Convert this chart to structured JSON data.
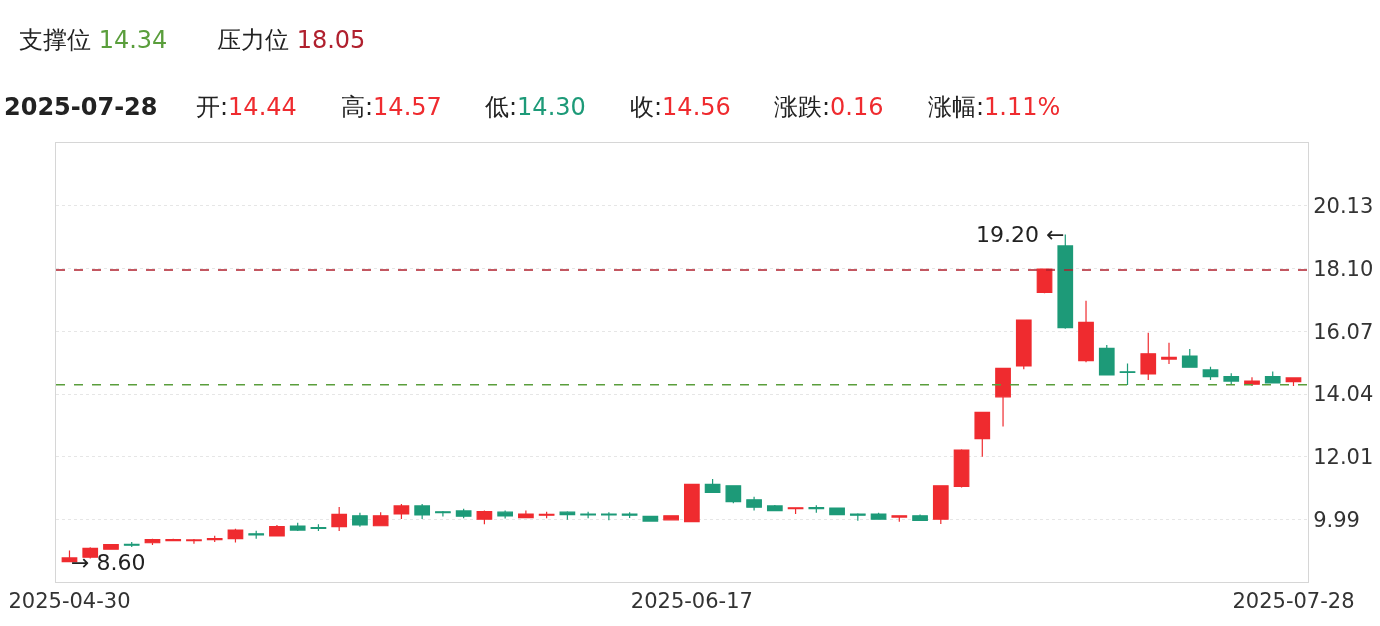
{
  "chart_data": {
    "type": "candlestick",
    "categories": [
      "2025-04-30",
      null,
      null,
      null,
      null,
      null,
      null,
      null,
      null,
      null,
      null,
      null,
      null,
      null,
      null,
      null,
      null,
      null,
      null,
      null,
      null,
      null,
      null,
      null,
      null,
      null,
      null,
      null,
      null,
      null,
      "2025-06-17",
      null,
      null,
      null,
      null,
      null,
      null,
      null,
      null,
      null,
      null,
      null,
      null,
      null,
      null,
      null,
      null,
      null,
      null,
      null,
      null,
      null,
      null,
      null,
      null,
      null,
      null,
      null,
      null,
      "2025-07-28"
    ],
    "ohlc": [
      [
        8.62,
        8.98,
        8.6,
        8.74
      ],
      [
        8.76,
        9.08,
        8.72,
        9.05
      ],
      [
        9.02,
        9.19,
        9.0,
        9.17
      ],
      [
        9.18,
        9.25,
        9.09,
        9.15
      ],
      [
        9.23,
        9.36,
        9.16,
        9.33
      ],
      [
        9.3,
        9.36,
        9.28,
        9.33
      ],
      [
        9.3,
        9.35,
        9.2,
        9.32
      ],
      [
        9.33,
        9.46,
        9.25,
        9.36
      ],
      [
        9.36,
        9.68,
        9.24,
        9.64
      ],
      [
        9.52,
        9.62,
        9.36,
        9.48
      ],
      [
        9.45,
        9.8,
        9.43,
        9.75
      ],
      [
        9.77,
        9.88,
        9.61,
        9.64
      ],
      [
        9.72,
        9.83,
        9.61,
        9.69
      ],
      [
        9.75,
        10.39,
        9.61,
        10.15
      ],
      [
        10.1,
        10.2,
        9.75,
        9.81
      ],
      [
        9.78,
        10.22,
        9.76,
        10.1
      ],
      [
        10.16,
        10.48,
        10.0,
        10.42
      ],
      [
        10.42,
        10.48,
        10.0,
        10.13
      ],
      [
        10.23,
        10.26,
        10.08,
        10.2
      ],
      [
        10.26,
        10.33,
        10.02,
        10.09
      ],
      [
        9.99,
        10.27,
        9.83,
        10.24
      ],
      [
        10.22,
        10.27,
        10.01,
        10.1
      ],
      [
        10.04,
        10.27,
        10.02,
        10.16
      ],
      [
        10.12,
        10.23,
        10.02,
        10.15
      ],
      [
        10.22,
        10.25,
        9.97,
        10.14
      ],
      [
        10.16,
        10.23,
        10.02,
        10.13
      ],
      [
        10.16,
        10.22,
        9.96,
        10.13
      ],
      [
        10.16,
        10.22,
        10.03,
        10.12
      ],
      [
        10.08,
        10.1,
        9.92,
        9.93
      ],
      [
        9.97,
        10.12,
        9.95,
        10.1
      ],
      [
        9.91,
        11.12,
        9.9,
        11.12
      ],
      [
        11.12,
        11.29,
        10.85,
        10.86
      ],
      [
        11.07,
        11.08,
        10.51,
        10.56
      ],
      [
        10.62,
        10.72,
        10.27,
        10.38
      ],
      [
        10.42,
        10.45,
        10.25,
        10.27
      ],
      [
        10.33,
        10.38,
        10.16,
        10.36
      ],
      [
        10.37,
        10.44,
        10.2,
        10.33
      ],
      [
        10.35,
        10.37,
        10.13,
        10.14
      ],
      [
        10.16,
        10.18,
        9.94,
        10.12
      ],
      [
        10.16,
        10.2,
        9.97,
        9.99
      ],
      [
        10.06,
        10.12,
        9.91,
        10.1
      ],
      [
        10.1,
        10.14,
        9.94,
        9.95
      ],
      [
        9.99,
        11.09,
        9.84,
        11.07
      ],
      [
        11.05,
        12.25,
        11.02,
        12.23
      ],
      [
        12.6,
        13.47,
        12.01,
        13.45
      ],
      [
        13.95,
        14.87,
        12.99,
        14.87
      ],
      [
        14.95,
        16.43,
        14.84,
        16.43
      ],
      [
        17.33,
        18.1,
        17.3,
        18.08
      ],
      [
        18.83,
        19.2,
        16.15,
        16.19
      ],
      [
        15.12,
        17.06,
        15.07,
        16.36
      ],
      [
        15.52,
        15.63,
        14.66,
        14.66
      ],
      [
        14.76,
        15.03,
        14.33,
        14.74
      ],
      [
        14.69,
        16.02,
        14.49,
        15.34
      ],
      [
        15.17,
        15.7,
        15.01,
        15.23
      ],
      [
        15.27,
        15.5,
        14.89,
        14.91
      ],
      [
        14.82,
        14.92,
        14.49,
        14.6
      ],
      [
        14.6,
        14.71,
        14.35,
        14.46
      ],
      [
        14.36,
        14.58,
        14.3,
        14.46
      ],
      [
        14.6,
        14.77,
        14.38,
        14.4
      ],
      [
        14.44,
        14.57,
        14.3,
        14.56
      ]
    ],
    "colors": [
      "#ef2b2f",
      "#ef2b2f",
      "#ef2b2f",
      "#1d9a78",
      "#ef2b2f",
      "#ef2b2f",
      "#ef2b2f",
      "#ef2b2f",
      "#ef2b2f",
      "#1d9a78",
      "#ef2b2f",
      "#1d9a78",
      "#1d9a78",
      "#ef2b2f",
      "#1d9a78",
      "#ef2b2f",
      "#ef2b2f",
      "#1d9a78",
      "#1d9a78",
      "#1d9a78",
      "#ef2b2f",
      "#1d9a78",
      "#ef2b2f",
      "#ef2b2f",
      "#1d9a78",
      "#1d9a78",
      "#1d9a78",
      "#1d9a78",
      "#1d9a78",
      "#ef2b2f",
      "#ef2b2f",
      "#1d9a78",
      "#1d9a78",
      "#1d9a78",
      "#1d9a78",
      "#ef2b2f",
      "#1d9a78",
      "#1d9a78",
      "#1d9a78",
      "#1d9a78",
      "#ef2b2f",
      "#1d9a78",
      "#ef2b2f",
      "#ef2b2f",
      "#ef2b2f",
      "#ef2b2f",
      "#ef2b2f",
      "#ef2b2f",
      "#1d9a78",
      "#ef2b2f",
      "#1d9a78",
      "#1d9a78",
      "#ef2b2f",
      "#ef2b2f",
      "#1d9a78",
      "#1d9a78",
      "#1d9a78",
      "#ef2b2f",
      "#1d9a78",
      "#ef2b2f"
    ],
    "ylim": [
      7.96,
      22.16
    ],
    "yticks": [
      9.99,
      12.01,
      14.04,
      16.07,
      {
        "value": 18.1,
        "label": "18.10"
      },
      20.13
    ],
    "grid": "y",
    "ref_lines": [
      {
        "axis": "y",
        "value": 14.34,
        "color": "#5a9e3c",
        "line_style": "dashed"
      },
      {
        "axis": "y",
        "value": 18.05,
        "color": "#b0202e",
        "line_style": "dashed"
      }
    ],
    "annotations": [
      "支撑位 14.34",
      "压力位 18.05",
      "2025-07-28",
      "开:14.44",
      "高:14.57",
      "低:14.30",
      "收:14.56",
      "涨跌:0.16",
      "涨幅:1.11%",
      "19.20 ←",
      "→ 8.60"
    ]
  }
}
